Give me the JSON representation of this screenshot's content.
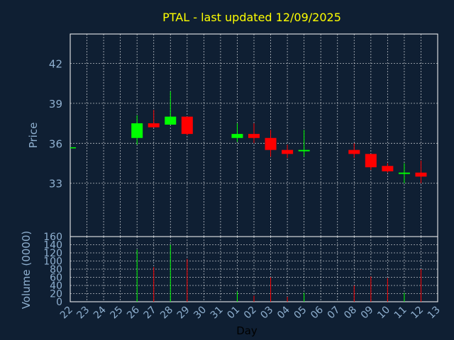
{
  "chart_data": [
    {
      "type": "candlestick",
      "title": "PTAL - last updated 12/09/2025",
      "ylabel": "Price",
      "ylim": [
        29.0,
        44.2
      ],
      "yticks": [
        33,
        36,
        39,
        42
      ],
      "grid": true,
      "up_color": "#00ff00",
      "down_color": "#ff0000",
      "categories": [
        "22",
        "23",
        "24",
        "25",
        "26",
        "27",
        "28",
        "29",
        "30",
        "31",
        "01",
        "02",
        "03",
        "04",
        "05",
        "06",
        "07",
        "08",
        "09",
        "10",
        "11",
        "12",
        "13"
      ],
      "candles": [
        {
          "day": "22",
          "open": 35.7,
          "close": 35.7,
          "high": 35.7,
          "low": 35.7
        },
        {
          "day": "26",
          "open": 36.4,
          "close": 37.5,
          "high": 38.1,
          "low": 35.9
        },
        {
          "day": "27",
          "open": 37.5,
          "close": 37.2,
          "high": 38.5,
          "low": 37.2
        },
        {
          "day": "28",
          "open": 37.4,
          "close": 38.0,
          "high": 39.9,
          "low": 37.4
        },
        {
          "day": "29",
          "open": 38.0,
          "close": 36.7,
          "high": 38.0,
          "low": 36.6
        },
        {
          "day": "01",
          "open": 36.4,
          "close": 36.7,
          "high": 37.5,
          "low": 36.1
        },
        {
          "day": "02",
          "open": 36.7,
          "close": 36.4,
          "high": 37.5,
          "low": 36.0
        },
        {
          "day": "03",
          "open": 36.4,
          "close": 35.5,
          "high": 37.0,
          "low": 35.0
        },
        {
          "day": "04",
          "open": 35.5,
          "close": 35.2,
          "high": 35.9,
          "low": 34.9
        },
        {
          "day": "05",
          "open": 35.4,
          "close": 35.5,
          "high": 37.0,
          "low": 35.0
        },
        {
          "day": "08",
          "open": 35.5,
          "close": 35.2,
          "high": 36.0,
          "low": 34.9
        },
        {
          "day": "09",
          "open": 35.2,
          "close": 34.2,
          "high": 35.2,
          "low": 34.0
        },
        {
          "day": "10",
          "open": 34.3,
          "close": 33.9,
          "high": 34.5,
          "low": 33.8
        },
        {
          "day": "11",
          "open": 33.7,
          "close": 33.8,
          "high": 34.5,
          "low": 33.0
        },
        {
          "day": "12",
          "open": 33.8,
          "close": 33.5,
          "high": 34.7,
          "low": 33.0
        }
      ]
    },
    {
      "type": "bar",
      "ylabel": "Volume (0000)",
      "xlabel": "Day",
      "ylim": [
        0,
        160
      ],
      "yticks": [
        0,
        20,
        40,
        60,
        80,
        100,
        120,
        140,
        160
      ],
      "grid": true,
      "bars": [
        {
          "day": "26",
          "value": 128,
          "color": "#00ff00"
        },
        {
          "day": "27",
          "value": 85,
          "color": "#ff0000"
        },
        {
          "day": "28",
          "value": 140,
          "color": "#00ff00"
        },
        {
          "day": "29",
          "value": 105,
          "color": "#ff0000"
        },
        {
          "day": "01",
          "value": 25,
          "color": "#00ff00"
        },
        {
          "day": "02",
          "value": 15,
          "color": "#ff0000"
        },
        {
          "day": "03",
          "value": 60,
          "color": "#ff0000"
        },
        {
          "day": "04",
          "value": 12,
          "color": "#ff0000"
        },
        {
          "day": "05",
          "value": 22,
          "color": "#00ff00"
        },
        {
          "day": "08",
          "value": 40,
          "color": "#ff0000"
        },
        {
          "day": "09",
          "value": 62,
          "color": "#ff0000"
        },
        {
          "day": "10",
          "value": 58,
          "color": "#ff0000"
        },
        {
          "day": "11",
          "value": 22,
          "color": "#00ff00"
        },
        {
          "day": "12",
          "value": 80,
          "color": "#ff0000"
        }
      ]
    }
  ]
}
